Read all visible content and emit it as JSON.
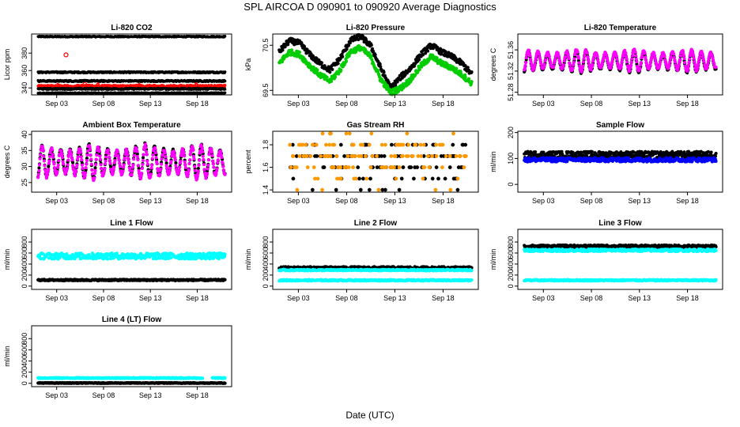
{
  "figure": {
    "title": "SPL   AIRCOA D   090901 to 090920   Average Diagnostics",
    "xlabel": "Date (UTC)",
    "date_ticks": [
      "Sep 03",
      "Sep 08",
      "Sep 13",
      "Sep 18"
    ],
    "colors": {
      "black": "#000000",
      "red": "#ff0000",
      "green": "#00cc00",
      "magenta": "#ff00ff",
      "orange": "#ff9900",
      "blue": "#0000ff",
      "cyan": "#00ffff"
    }
  },
  "chart_data": [
    {
      "type": "scatter",
      "title": "Li-820 CO2",
      "ylabel": "Licor ppm",
      "yticks": [
        340,
        360,
        380
      ],
      "ylim": [
        332,
        402
      ],
      "series": [
        {
          "name": "band-top",
          "color": "black",
          "style": "band",
          "level": 399,
          "spread": 0.6
        },
        {
          "name": "band-upper",
          "color": "black",
          "style": "band",
          "level": 358,
          "spread": 0.8
        },
        {
          "name": "band-mid",
          "color": "black",
          "style": "band",
          "level": 348,
          "spread": 0.8
        },
        {
          "name": "co2-red",
          "color": "red",
          "style": "band",
          "level": 342,
          "spread": 1.2
        },
        {
          "name": "band-lower",
          "color": "black",
          "style": "band",
          "level": 339,
          "spread": 0.8
        },
        {
          "name": "band-bottom",
          "color": "black",
          "style": "band",
          "level": 334,
          "spread": 0.6
        }
      ],
      "outliers": [
        {
          "day": 3.0,
          "value": 378,
          "color": "red"
        },
        {
          "day": 5.0,
          "value": 344,
          "color": "red"
        }
      ],
      "spikes": [
        {
          "day": 2.1,
          "value": 346,
          "color": "red"
        },
        {
          "day": 6.4,
          "value": 347,
          "color": "red"
        },
        {
          "day": 10.8,
          "value": 346,
          "color": "red"
        },
        {
          "day": 16.9,
          "value": 347,
          "color": "red"
        }
      ]
    },
    {
      "type": "line",
      "title": "Li-820 Pressure",
      "ylabel": "kPa",
      "yticks": [
        69.5,
        70.5
      ],
      "ylim": [
        69.4,
        70.75
      ],
      "series": [
        {
          "name": "pressure-black",
          "color": "black",
          "style": "thick",
          "values": [
            70.35,
            70.6,
            70.55,
            70.3,
            70.1,
            69.95,
            70.2,
            70.6,
            70.7,
            70.5,
            70.0,
            69.55,
            69.8,
            70.0,
            70.3,
            70.5,
            70.35,
            70.25,
            70.1,
            69.85
          ]
        },
        {
          "name": "pressure-green",
          "color": "green",
          "style": "thick",
          "values": [
            70.1,
            70.35,
            70.3,
            70.05,
            69.85,
            69.7,
            69.95,
            70.35,
            70.45,
            70.25,
            69.75,
            69.45,
            69.55,
            69.75,
            70.05,
            70.25,
            70.1,
            70.0,
            69.85,
            69.65
          ]
        }
      ]
    },
    {
      "type": "line",
      "title": "Li-820 Temperature",
      "ylabel": "degrees C",
      "yticks": [
        51.28,
        51.32,
        51.36
      ],
      "ylim": [
        51.275,
        51.39
      ],
      "series": [
        {
          "name": "temp-black",
          "color": "black",
          "style": "diurnal",
          "mean": 51.338,
          "amp": 0.022
        },
        {
          "name": "temp-magenta",
          "color": "magenta",
          "style": "diurnal",
          "mean": 51.34,
          "amp": 0.022
        }
      ]
    },
    {
      "type": "line",
      "title": "Ambient Box Temperature",
      "ylabel": "degrees C",
      "yticks": [
        25,
        30,
        35,
        40
      ],
      "ylim": [
        22,
        41
      ],
      "series": [
        {
          "name": "box-black",
          "color": "black",
          "style": "diurnal",
          "mean": 31.5,
          "amp": 5.5
        },
        {
          "name": "box-magenta",
          "color": "magenta",
          "style": "diurnal",
          "mean": 31.3,
          "amp": 5.5
        }
      ]
    },
    {
      "type": "scatter",
      "title": "Gas Stream RH",
      "ylabel": "percent",
      "yticks": [
        1.4,
        1.6,
        1.8
      ],
      "ylim": [
        1.38,
        1.92
      ],
      "series": [
        {
          "name": "rh-black",
          "color": "black",
          "style": "levels",
          "levels": [
            1.4,
            1.5,
            1.6,
            1.7,
            1.8
          ],
          "weights": [
            1,
            3,
            6,
            8,
            4
          ]
        },
        {
          "name": "rh-orange",
          "color": "orange",
          "style": "levels",
          "levels": [
            1.4,
            1.5,
            1.6,
            1.7,
            1.8,
            1.9
          ],
          "weights": [
            1,
            1,
            3,
            4,
            5,
            1
          ]
        }
      ]
    },
    {
      "type": "scatter",
      "title": "Sample Flow",
      "ylabel": "ml/min",
      "yticks": [
        0,
        100,
        200
      ],
      "ylim": [
        -30,
        205
      ],
      "series": [
        {
          "name": "sample-black",
          "color": "black",
          "style": "band",
          "level": 115,
          "spread": 12
        },
        {
          "name": "sample-blue",
          "color": "blue",
          "style": "band",
          "level": 95,
          "spread": 8
        }
      ]
    },
    {
      "type": "scatter",
      "title": "Line 1 Flow",
      "ylabel": "ml/min",
      "yticks": [
        0,
        200,
        400,
        600,
        800
      ],
      "ylim": [
        -60,
        1030
      ],
      "series": [
        {
          "name": "line1-cyan",
          "color": "cyan",
          "style": "band",
          "level": 545,
          "spread": 55
        },
        {
          "name": "line1-black",
          "color": "black",
          "style": "band",
          "level": 110,
          "spread": 12
        }
      ]
    },
    {
      "type": "scatter",
      "title": "Line 2 Flow",
      "ylabel": "ml/min",
      "yticks": [
        0,
        200,
        400,
        600,
        800
      ],
      "ylim": [
        -60,
        1030
      ],
      "series": [
        {
          "name": "line2-black",
          "color": "black",
          "style": "band",
          "level": 330,
          "spread": 22
        },
        {
          "name": "line2-cyan-upper",
          "color": "cyan",
          "style": "band",
          "level": 290,
          "spread": 12
        },
        {
          "name": "line2-cyan-lower",
          "color": "cyan",
          "style": "band",
          "level": 105,
          "spread": 12
        }
      ]
    },
    {
      "type": "scatter",
      "title": "Line 3 Flow",
      "ylabel": "ml/min",
      "yticks": [
        0,
        200,
        400,
        600,
        800
      ],
      "ylim": [
        -60,
        1030
      ],
      "series": [
        {
          "name": "line3-black",
          "color": "black",
          "style": "band",
          "level": 720,
          "spread": 25
        },
        {
          "name": "line3-cyan-upper",
          "color": "cyan",
          "style": "band",
          "level": 650,
          "spread": 22
        },
        {
          "name": "line3-cyan-lower",
          "color": "cyan",
          "style": "band",
          "level": 105,
          "spread": 12
        }
      ]
    },
    {
      "type": "scatter",
      "title": "Line 4 (LT) Flow",
      "ylabel": "ml/min",
      "yticks": [
        0,
        200,
        400,
        600,
        800
      ],
      "ylim": [
        -60,
        1030
      ],
      "series": [
        {
          "name": "line4-cyan",
          "color": "cyan",
          "style": "band",
          "level": 95,
          "spread": 8,
          "gap": [
            17.6,
            18.6
          ]
        },
        {
          "name": "line4-black",
          "color": "black",
          "style": "band",
          "level": 5,
          "spread": 6
        }
      ]
    }
  ]
}
